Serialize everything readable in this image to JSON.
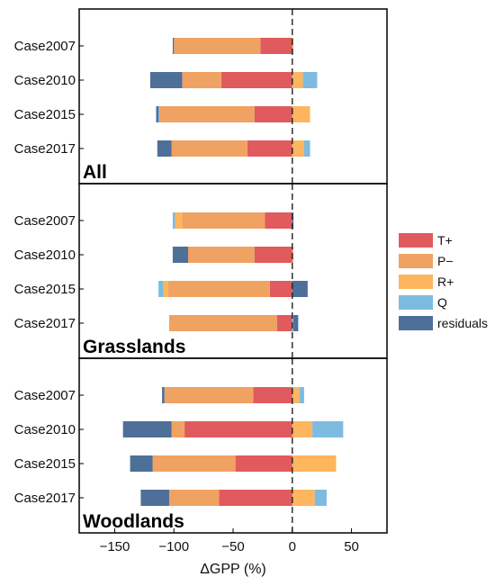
{
  "chart_data": {
    "type": "bar",
    "orientation": "horizontal",
    "stacked": true,
    "xlabel": "ΔGPP (%)",
    "xlim": [
      -180,
      80
    ],
    "xticks": [
      -150,
      -100,
      -50,
      0,
      50
    ],
    "xtick_labels": [
      "−150",
      "−100",
      "−50",
      "0",
      "50"
    ],
    "zero_line": "dashed",
    "legend_placement": "right",
    "colors": {
      "T+": "#e05a5e",
      "P−": "#f0a262",
      "R+": "#fdb55e",
      "Q": "#7dbbe0",
      "residuals": "#4e6f98"
    },
    "legend": [
      {
        "key": "T+",
        "label": "T+"
      },
      {
        "key": "P−",
        "label": "P−"
      },
      {
        "key": "R+",
        "label": "R+"
      },
      {
        "key": "Q",
        "label": "Q"
      },
      {
        "key": "residuals",
        "label": "residuals"
      }
    ],
    "categories": [
      "Case2007",
      "Case2010",
      "Case2015",
      "Case2017"
    ],
    "panels": [
      {
        "label": "All",
        "cases": [
          {
            "name": "Case2007",
            "neg": [
              [
                "T+",
                27
              ],
              [
                "P−",
                73
              ],
              [
                "residuals",
                1
              ]
            ],
            "pos": [
              [
                "R+",
                1
              ],
              [
                "Q",
                0
              ]
            ]
          },
          {
            "name": "Case2010",
            "neg": [
              [
                "T+",
                60
              ],
              [
                "P−",
                33
              ],
              [
                "residuals",
                27
              ]
            ],
            "pos": [
              [
                "R+",
                9
              ],
              [
                "Q",
                12
              ]
            ]
          },
          {
            "name": "Case2015",
            "neg": [
              [
                "T+",
                32
              ],
              [
                "P−",
                80
              ],
              [
                "Q",
                1
              ],
              [
                "residuals",
                2
              ]
            ],
            "pos": [
              [
                "R+",
                15
              ]
            ]
          },
          {
            "name": "Case2017",
            "neg": [
              [
                "T+",
                38
              ],
              [
                "P−",
                64
              ],
              [
                "residuals",
                12
              ]
            ],
            "pos": [
              [
                "R+",
                10
              ],
              [
                "Q",
                5
              ]
            ]
          }
        ]
      },
      {
        "label": "Grasslands",
        "cases": [
          {
            "name": "Case2007",
            "neg": [
              [
                "T+",
                23
              ],
              [
                "P−",
                70
              ],
              [
                "R+",
                6
              ],
              [
                "Q",
                2
              ]
            ],
            "pos": [
              [
                "residuals",
                1
              ]
            ]
          },
          {
            "name": "Case2010",
            "neg": [
              [
                "T+",
                32
              ],
              [
                "P−",
                56
              ],
              [
                "residuals",
                13
              ]
            ],
            "pos": [
              [
                "R+",
                1
              ]
            ]
          },
          {
            "name": "Case2015",
            "neg": [
              [
                "T+",
                19
              ],
              [
                "P−",
                86
              ],
              [
                "R+",
                4
              ],
              [
                "Q",
                4
              ]
            ],
            "pos": [
              [
                "residuals",
                13
              ]
            ]
          },
          {
            "name": "Case2017",
            "neg": [
              [
                "T+",
                13
              ],
              [
                "P−",
                91
              ]
            ],
            "pos": [
              [
                "Q",
                1
              ],
              [
                "residuals",
                4
              ]
            ]
          }
        ]
      },
      {
        "label": "Woodlands",
        "cases": [
          {
            "name": "Case2007",
            "neg": [
              [
                "T+",
                33
              ],
              [
                "P−",
                75
              ],
              [
                "residuals",
                2
              ]
            ],
            "pos": [
              [
                "R+",
                6
              ],
              [
                "Q",
                4
              ]
            ]
          },
          {
            "name": "Case2010",
            "neg": [
              [
                "T+",
                91
              ],
              [
                "P−",
                11
              ],
              [
                "residuals",
                41
              ]
            ],
            "pos": [
              [
                "R+",
                17
              ],
              [
                "Q",
                26
              ]
            ]
          },
          {
            "name": "Case2015",
            "neg": [
              [
                "T+",
                48
              ],
              [
                "P−",
                70
              ],
              [
                "residuals",
                19
              ]
            ],
            "pos": [
              [
                "R+",
                37
              ]
            ]
          },
          {
            "name": "Case2017",
            "neg": [
              [
                "T+",
                62
              ],
              [
                "P−",
                42
              ],
              [
                "residuals",
                24
              ]
            ],
            "pos": [
              [
                "R+",
                19
              ],
              [
                "Q",
                10
              ]
            ]
          }
        ]
      }
    ]
  }
}
